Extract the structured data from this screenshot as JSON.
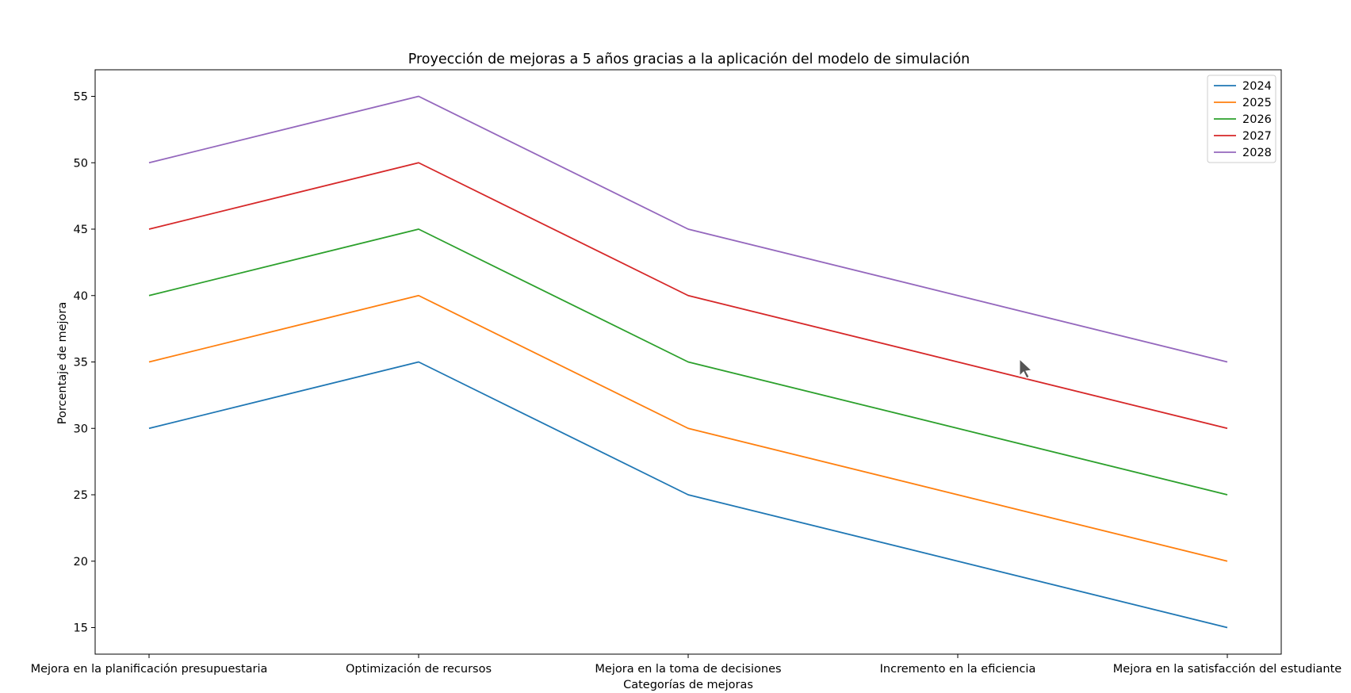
{
  "chart_data": {
    "type": "line",
    "title": "Proyección de mejoras a 5 años gracias a la aplicación del modelo de simulación",
    "xlabel": "Categorías de mejoras",
    "ylabel": "Porcentaje de mejora",
    "categories": [
      "Mejora en la planificación presupuestaria",
      "Optimización de recursos",
      "Mejora en la toma de decisiones",
      "Incremento en la eficiencia",
      "Mejora en la satisfacción del estudiante"
    ],
    "series": [
      {
        "name": "2024",
        "color": "#1f77b4",
        "values": [
          30,
          35,
          25,
          20,
          15
        ]
      },
      {
        "name": "2025",
        "color": "#ff7f0e",
        "values": [
          35,
          40,
          30,
          25,
          20
        ]
      },
      {
        "name": "2026",
        "color": "#2ca02c",
        "values": [
          40,
          45,
          35,
          30,
          25
        ]
      },
      {
        "name": "2027",
        "color": "#d62728",
        "values": [
          45,
          50,
          40,
          35,
          30
        ]
      },
      {
        "name": "2028",
        "color": "#9467bd",
        "values": [
          50,
          55,
          45,
          40,
          35
        ]
      }
    ],
    "yticks": [
      15,
      20,
      25,
      30,
      35,
      40,
      45,
      50,
      55
    ],
    "ylim": [
      13,
      57
    ],
    "grid": false,
    "legend": "top-right"
  }
}
